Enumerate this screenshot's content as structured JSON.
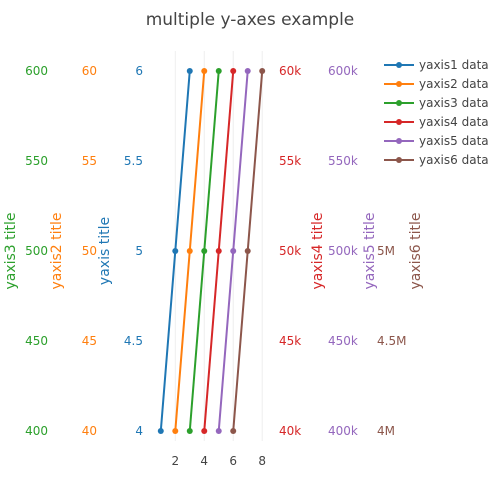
{
  "chart_data": {
    "type": "line",
    "title": "multiple y-axes example",
    "x": [
      1,
      2,
      3
    ],
    "xaxis": {
      "range": [
        0.6,
        8.4
      ],
      "tick_values": [
        2,
        4,
        6,
        8
      ],
      "tick_labels": [
        "2",
        "4",
        "6",
        "8"
      ]
    },
    "series": [
      {
        "name": "yaxis1 data",
        "axis": "y1",
        "color": "#1f77b4",
        "x": [
          1,
          2,
          3
        ],
        "y": [
          4,
          5,
          6
        ]
      },
      {
        "name": "yaxis2 data",
        "axis": "y2",
        "color": "#ff7f0e",
        "x": [
          2,
          3,
          4
        ],
        "y": [
          40,
          50,
          60
        ]
      },
      {
        "name": "yaxis3 data",
        "axis": "y3",
        "color": "#2ca02c",
        "x": [
          3,
          4,
          5
        ],
        "y": [
          400,
          500,
          600
        ]
      },
      {
        "name": "yaxis4 data",
        "axis": "y4",
        "color": "#d62728",
        "x": [
          4,
          5,
          6
        ],
        "y": [
          40000,
          50000,
          60000
        ]
      },
      {
        "name": "yaxis5 data",
        "axis": "y5",
        "color": "#9467bd",
        "x": [
          5,
          6,
          7
        ],
        "y": [
          400000,
          500000,
          600000
        ]
      },
      {
        "name": "yaxis6 data",
        "axis": "y6",
        "color": "#8c564b",
        "x": [
          6,
          7,
          8
        ],
        "y": [
          4000000,
          5000000,
          6000000
        ]
      }
    ],
    "y_axes": [
      {
        "id": "y1",
        "title": "yaxis title",
        "color": "#1f77b4",
        "range": [
          4,
          6
        ],
        "tick_values": [
          4,
          4.5,
          5,
          5.5,
          6
        ],
        "tick_labels": [
          "4",
          "4.5",
          "5",
          "5.5",
          "6"
        ]
      },
      {
        "id": "y2",
        "title": "yaxis2 title",
        "color": "#ff7f0e",
        "range": [
          40,
          60
        ],
        "tick_values": [
          40,
          45,
          50,
          55,
          60
        ],
        "tick_labels": [
          "40",
          "45",
          "50",
          "55",
          "60"
        ]
      },
      {
        "id": "y3",
        "title": "yaxis3 title",
        "color": "#2ca02c",
        "range": [
          400,
          600
        ],
        "tick_values": [
          400,
          450,
          500,
          550,
          600
        ],
        "tick_labels": [
          "400",
          "450",
          "500",
          "550",
          "600"
        ]
      },
      {
        "id": "y4",
        "title": "yaxis4 title",
        "color": "#d62728",
        "range": [
          40000,
          60000
        ],
        "tick_values": [
          40000,
          45000,
          50000,
          55000,
          60000
        ],
        "tick_labels": [
          "40k",
          "45k",
          "50k",
          "55k",
          "60k"
        ]
      },
      {
        "id": "y5",
        "title": "yaxis5 title",
        "color": "#9467bd",
        "range": [
          400000,
          600000
        ],
        "tick_values": [
          400000,
          450000,
          500000,
          550000,
          600000
        ],
        "tick_labels": [
          "400k",
          "450k",
          "500k",
          "550k",
          "600k"
        ]
      },
      {
        "id": "y6",
        "title": "yaxis6 title",
        "color": "#8c564b",
        "range": [
          4000000,
          6000000
        ],
        "tick_values": [
          4000000,
          4500000,
          5000000
        ],
        "tick_labels": [
          "4M",
          "4.5M",
          "5M"
        ]
      }
    ],
    "legend": {
      "position": "top-right"
    },
    "grid": true
  }
}
